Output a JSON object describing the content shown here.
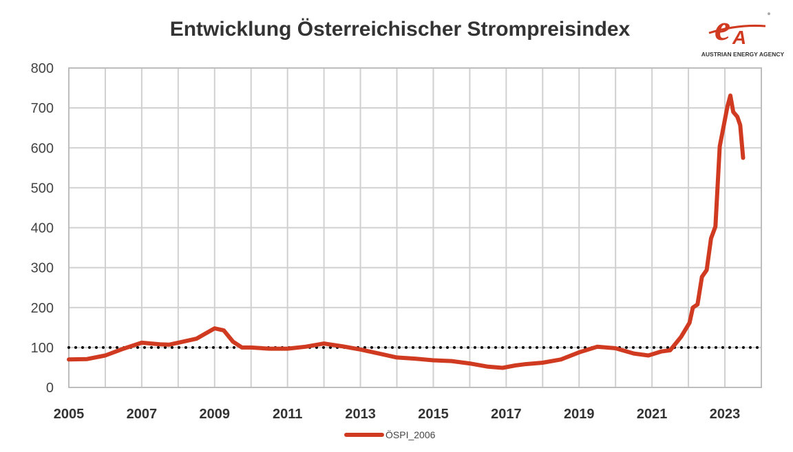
{
  "logo_text": "AUSTRIAN ENERGY AGENCY",
  "chart_data": {
    "type": "line",
    "title": "Entwicklung Österreichischer Strompreisindex",
    "xlabel": "",
    "ylabel": "",
    "xlim": [
      2005,
      2024
    ],
    "ylim": [
      0,
      800
    ],
    "x_ticks": [
      "2005",
      "2007",
      "2009",
      "2011",
      "2013",
      "2015",
      "2017",
      "2019",
      "2021",
      "2023"
    ],
    "y_ticks": [
      "0",
      "100",
      "200",
      "300",
      "400",
      "500",
      "600",
      "700",
      "800"
    ],
    "grid": true,
    "legend": "bottom",
    "reference_line": {
      "y": 100,
      "style": "dotted",
      "color": "#000000"
    },
    "series": [
      {
        "name": "ÖSPI_2006",
        "color": "#D03A20",
        "x": [
          2005.0,
          2005.5,
          2006.0,
          2006.5,
          2007.0,
          2007.5,
          2007.75,
          2008.0,
          2008.5,
          2008.75,
          2009.0,
          2009.25,
          2009.5,
          2009.75,
          2010.0,
          2010.5,
          2011.0,
          2011.5,
          2012.0,
          2012.5,
          2013.0,
          2013.5,
          2014.0,
          2014.5,
          2015.0,
          2015.5,
          2016.0,
          2016.5,
          2016.9,
          2017.25,
          2017.5,
          2018.0,
          2018.5,
          2019.0,
          2019.5,
          2020.0,
          2020.5,
          2020.9,
          2021.25,
          2021.5,
          2021.8,
          2022.03,
          2022.12,
          2022.25,
          2022.37,
          2022.5,
          2022.62,
          2022.74,
          2022.86,
          2023.07,
          2023.15,
          2023.23,
          2023.34,
          2023.42,
          2023.5
        ],
        "y": [
          70,
          71,
          80,
          97,
          112,
          108,
          107,
          112,
          122,
          135,
          148,
          143,
          115,
          100,
          100,
          97,
          97,
          102,
          110,
          103,
          95,
          85,
          75,
          72,
          68,
          66,
          60,
          52,
          49,
          55,
          58,
          62,
          70,
          88,
          102,
          98,
          85,
          80,
          90,
          93,
          127,
          162,
          200,
          208,
          277,
          294,
          373,
          403,
          604,
          704,
          731,
          690,
          678,
          657,
          575
        ]
      }
    ]
  }
}
